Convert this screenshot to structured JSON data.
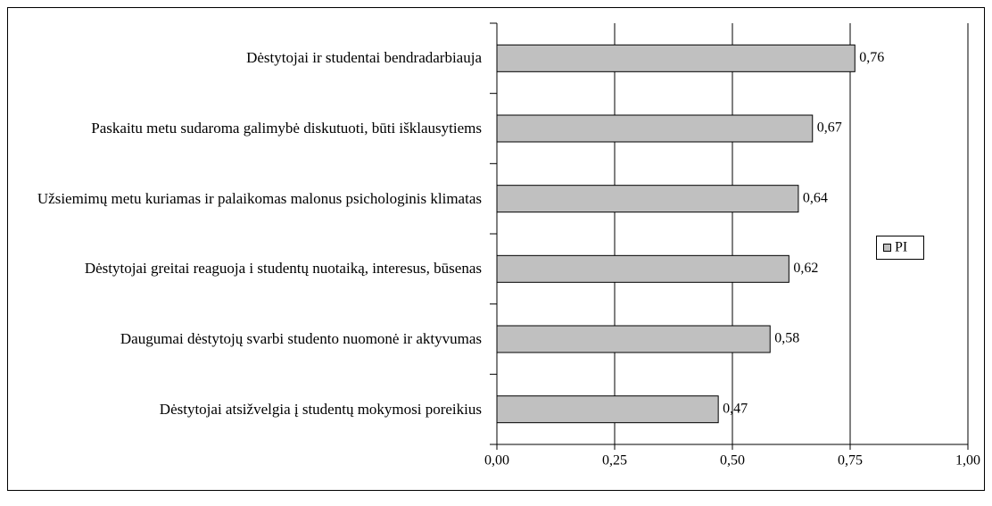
{
  "chart_data": {
    "type": "bar",
    "orientation": "horizontal",
    "categories": [
      "Dėstytojai ir studentai bendradarbiauja",
      "Paskaitu metu sudaroma galimybė diskutuoti, būti išklausytiems",
      "Užsiemimų metu kuriamas ir palaikomas malonus psichologinis klimatas",
      "Dėstytojai greitai reaguoja i studentų nuotaiką, interesus, būsenas",
      "Daugumai dėstytojų svarbi studento nuomonė ir aktyvumas",
      "Dėstytojai atsižvelgia į studentų mokymosi poreikius"
    ],
    "series": [
      {
        "name": "PI",
        "color": "#c0c0c0",
        "values": [
          0.76,
          0.67,
          0.64,
          0.62,
          0.58,
          0.47
        ],
        "value_labels": [
          "0,76",
          "0,67",
          "0,64",
          "0,62",
          "0,58",
          "0,47"
        ]
      }
    ],
    "xlim": [
      0,
      1
    ],
    "xticks": [
      {
        "value": 0,
        "label": "0,00"
      },
      {
        "value": 0.25,
        "label": "0,25"
      },
      {
        "value": 0.5,
        "label": "0,50"
      },
      {
        "value": 0.75,
        "label": "0,75"
      },
      {
        "value": 1,
        "label": "1,00"
      }
    ],
    "grid": true,
    "legend": "right"
  }
}
